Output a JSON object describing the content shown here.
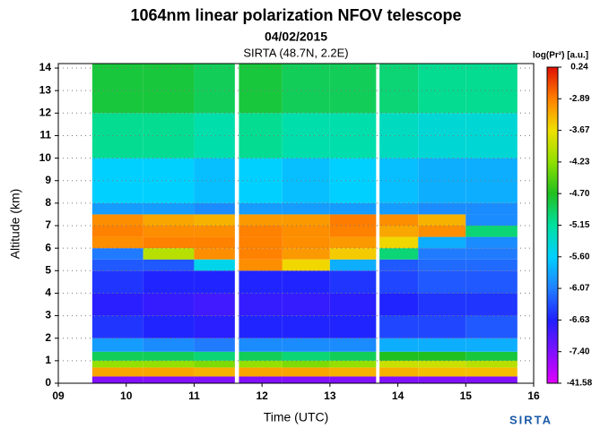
{
  "chart_data": {
    "type": "heatmap",
    "title": "1064nm linear polarization NFOV telescope",
    "subtitle": "04/02/2015",
    "site": "SIRTA (48.7N, 2.2E)",
    "x_label": "Time (UTC)",
    "y_label": "Altitude (km)",
    "colorbar_label": "log(Pr²) [a.u.]",
    "logo": "SIRTA",
    "xlim": [
      9,
      16
    ],
    "ylim": [
      0,
      14.2
    ],
    "xticks": [
      {
        "value": 9,
        "label": "09"
      },
      10,
      11,
      12,
      13,
      14,
      15,
      16
    ],
    "yticks": [
      0,
      1,
      2,
      3,
      4,
      5,
      6,
      7,
      8,
      9,
      10,
      11,
      12,
      13,
      14
    ],
    "grid": true,
    "xbins": [
      9.5,
      10.25,
      11,
      11.6,
      11.66,
      12.3,
      13,
      13.68,
      13.73,
      14.3,
      15,
      15.76
    ],
    "ybins": [
      0,
      0.3,
      0.7,
      1.0,
      1.4,
      2,
      3,
      4,
      5,
      5.5,
      6,
      6.5,
      7,
      7.5,
      8,
      10,
      12,
      14.2
    ],
    "z": [
      [
        -7.4,
        -7.4,
        -7.4,
        null,
        -7.4,
        -7.4,
        -7.4,
        null,
        -7.4,
        -7.4,
        -7.4
      ],
      [
        -3.2,
        -3.2,
        -3.3,
        null,
        -3.2,
        -3.2,
        -3.3,
        null,
        -3.3,
        -3.4,
        -3.4
      ],
      [
        -4.2,
        -4.2,
        -4.3,
        null,
        -4.2,
        -4.3,
        -4.2,
        null,
        -3.9,
        -3.9,
        -4.0
      ],
      [
        -4.9,
        -4.9,
        -5.0,
        null,
        -4.9,
        -5.0,
        -4.9,
        null,
        -4.7,
        -4.7,
        -4.8
      ],
      [
        -5.9,
        -6.0,
        -6.1,
        null,
        -6.0,
        -6.0,
        -6.0,
        null,
        -5.8,
        -5.8,
        -5.8
      ],
      [
        -6.5,
        -6.6,
        -6.7,
        null,
        -6.6,
        -6.6,
        -6.6,
        null,
        -6.4,
        -6.4,
        -6.3
      ],
      [
        -6.7,
        -6.8,
        -6.9,
        null,
        -6.8,
        -6.8,
        -6.7,
        null,
        -6.6,
        -6.5,
        -6.5
      ],
      [
        -6.5,
        -6.6,
        -6.6,
        null,
        -6.6,
        -6.6,
        -6.5,
        null,
        -6.4,
        -6.3,
        -6.3
      ],
      [
        -6.3,
        -6.3,
        -5.5,
        null,
        -3.0,
        -3.6,
        -5.8,
        null,
        -6.3,
        -6.2,
        -6.2
      ],
      [
        -6.1,
        -4.0,
        -3.0,
        null,
        -2.9,
        -3.1,
        -3.5,
        null,
        -5.0,
        -6.1,
        -6.1
      ],
      [
        -3.0,
        -2.9,
        -2.9,
        null,
        -2.9,
        -3.0,
        -3.1,
        null,
        -3.6,
        -5.8,
        -6.0
      ],
      [
        -2.9,
        -3.0,
        -3.0,
        null,
        -2.9,
        -3.0,
        -2.9,
        null,
        -3.2,
        -3.0,
        -5.0
      ],
      [
        -3.0,
        -3.2,
        -3.3,
        null,
        -3.1,
        -3.1,
        -2.8,
        null,
        -3.0,
        -3.3,
        -6.0
      ],
      [
        -5.9,
        -5.9,
        -6.0,
        null,
        -5.9,
        -5.9,
        -5.9,
        null,
        -5.9,
        -6.0,
        -6.0
      ],
      [
        -5.6,
        -5.6,
        -5.7,
        null,
        -5.6,
        -5.7,
        -5.6,
        null,
        -5.7,
        -5.8,
        -5.8
      ],
      [
        -5.1,
        -5.1,
        -5.2,
        null,
        -5.1,
        -5.2,
        -5.2,
        null,
        -5.3,
        -5.4,
        -5.4
      ],
      [
        -4.8,
        -4.8,
        -4.9,
        null,
        -4.8,
        -4.9,
        -4.9,
        null,
        -5.0,
        -5.1,
        -5.1
      ]
    ],
    "colorbar_ticks": [
      -41.58,
      {
        "value": -7.4,
        "label": "-7.40"
      },
      -6.63,
      -6.07,
      {
        "value": -5.6,
        "label": "-5.60"
      },
      -5.15,
      {
        "value": -4.7,
        "label": "-4.70"
      },
      -4.23,
      -3.67,
      -2.89,
      0.24
    ],
    "colorscale": [
      "#e000ff",
      "#8010ff",
      "#2020ff",
      "#2080ff",
      "#00d0ff",
      "#00e0a0",
      "#20c020",
      "#90e000",
      "#f0e000",
      "#ff8000",
      "#e01000"
    ]
  }
}
